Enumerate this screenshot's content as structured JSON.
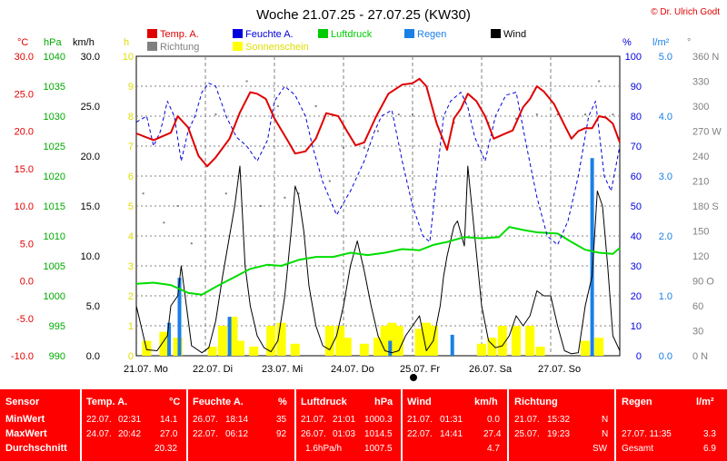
{
  "title": "Woche 21.07.25 - 27.07.25 (KW30)",
  "copyright": "© Dr. Ulrich Godt",
  "legend": [
    {
      "label": "Temp. A.",
      "color": "#e00000"
    },
    {
      "label": "Feuchte A.",
      "color": "#0000dd"
    },
    {
      "label": "Luftdruck",
      "color": "#00cc00"
    },
    {
      "label": "Regen",
      "color": "#1a7fe6"
    },
    {
      "label": "Wind",
      "color": "#000000"
    },
    {
      "label": "Richtung",
      "color": "#808080"
    },
    {
      "label": "Sonnenschein",
      "color": "#ffff00"
    }
  ],
  "axis_units": {
    "temp": "°C",
    "press": "hPa",
    "wind": "km/h",
    "sun": "h",
    "hum": "%",
    "rain": "l/m²",
    "dir": "°"
  },
  "chart_data": {
    "type": "line",
    "title": "Woche 21.07.25 - 27.07.25 (KW30)",
    "x_categories": [
      "21.07. Mo",
      "22.07. Di",
      "23.07. Mi",
      "24.07. Do",
      "25.07. Fr",
      "26.07. Sa",
      "27.07. So"
    ],
    "axes": {
      "temp_c": {
        "range": [
          -10,
          30
        ],
        "ticks": [
          "30.0",
          "25.0",
          "20.0",
          "15.0",
          "10.0",
          "5.0",
          "0.0",
          "-5.0",
          "-10.0"
        ]
      },
      "pressure_hpa": {
        "range": [
          990,
          1040
        ],
        "ticks": [
          "1040",
          "1035",
          "1030",
          "1025",
          "1020",
          "1015",
          "1010",
          "1005",
          "1000",
          "995",
          "990"
        ]
      },
      "wind_kmh": {
        "range": [
          0,
          30
        ],
        "ticks": [
          "30.0",
          "25.0",
          "20.0",
          "15.0",
          "10.0",
          "5.0",
          "0.0"
        ]
      },
      "sun_h": {
        "range": [
          0,
          10
        ],
        "ticks": [
          "10",
          "9",
          "8",
          "7",
          "6",
          "5",
          "4",
          "3",
          "2",
          "1",
          "0"
        ]
      },
      "humidity_pct": {
        "range": [
          0,
          100
        ],
        "ticks": [
          "100",
          "90",
          "80",
          "70",
          "60",
          "50",
          "40",
          "30",
          "20",
          "10",
          "0"
        ]
      },
      "rain_lm2": {
        "range": [
          0,
          5
        ],
        "ticks": [
          "5.0",
          "4.0",
          "3.0",
          "2.0",
          "1.0",
          "0.0"
        ]
      },
      "direction_deg": {
        "range": [
          0,
          360
        ],
        "ticks": [
          "360 N",
          "330",
          "300",
          "270 W",
          "240",
          "210",
          "180 S",
          "150",
          "120",
          "90 O",
          "60",
          "30",
          "0 N"
        ]
      }
    },
    "temperature": [
      [
        0,
        19.7
      ],
      [
        0.5,
        18.8
      ],
      [
        1,
        19.8
      ],
      [
        1.2,
        22.0
      ],
      [
        1.5,
        20.5
      ],
      [
        1.8,
        16.7
      ],
      [
        2.05,
        15.3
      ],
      [
        2.3,
        16.5
      ],
      [
        2.7,
        19.0
      ],
      [
        3.0,
        22.5
      ],
      [
        3.3,
        25.2
      ],
      [
        3.5,
        25.0
      ],
      [
        3.75,
        24.3
      ],
      [
        4.0,
        21.7
      ],
      [
        4.4,
        18.6
      ],
      [
        4.6,
        17.0
      ],
      [
        4.9,
        17.3
      ],
      [
        5.2,
        19.0
      ],
      [
        5.5,
        22.4
      ],
      [
        5.85,
        22.0
      ],
      [
        6.1,
        20.0
      ],
      [
        6.35,
        18.1
      ],
      [
        6.6,
        18.5
      ],
      [
        6.95,
        22.0
      ],
      [
        7.3,
        25.0
      ],
      [
        7.7,
        26.2
      ],
      [
        8.0,
        26.4
      ],
      [
        8.2,
        27.0
      ],
      [
        8.4,
        26.0
      ],
      [
        8.7,
        21.0
      ],
      [
        9.0,
        17.5
      ],
      [
        9.2,
        21.7
      ],
      [
        9.4,
        23.0
      ],
      [
        9.6,
        25.0
      ],
      [
        9.85,
        24.0
      ],
      [
        10.1,
        22.0
      ],
      [
        10.35,
        19.0
      ],
      [
        10.6,
        19.5
      ],
      [
        10.9,
        20.1
      ],
      [
        11.2,
        23.2
      ],
      [
        11.4,
        24.3
      ],
      [
        11.6,
        26.0
      ],
      [
        11.8,
        25.3
      ],
      [
        12.1,
        23.6
      ],
      [
        12.4,
        20.8
      ],
      [
        12.6,
        19.0
      ],
      [
        12.8,
        20.0
      ],
      [
        13.0,
        20.4
      ],
      [
        13.2,
        20.4
      ],
      [
        13.4,
        22.0
      ],
      [
        13.6,
        21.8
      ],
      [
        13.8,
        21.0
      ],
      [
        14.0,
        18.5
      ]
    ],
    "humidity": [
      [
        0,
        78
      ],
      [
        0.3,
        80
      ],
      [
        0.5,
        70
      ],
      [
        0.7,
        75
      ],
      [
        0.9,
        85
      ],
      [
        1.1,
        80
      ],
      [
        1.3,
        65
      ],
      [
        1.5,
        75
      ],
      [
        1.7,
        80
      ],
      [
        1.9,
        88
      ],
      [
        2.1,
        91
      ],
      [
        2.3,
        90
      ],
      [
        2.6,
        80
      ],
      [
        2.9,
        73
      ],
      [
        3.2,
        70
      ],
      [
        3.5,
        65
      ],
      [
        3.8,
        72
      ],
      [
        4.0,
        85
      ],
      [
        4.3,
        90
      ],
      [
        4.6,
        87
      ],
      [
        4.9,
        80
      ],
      [
        5.1,
        70
      ],
      [
        5.4,
        58
      ],
      [
        5.8,
        47
      ],
      [
        6.2,
        55
      ],
      [
        6.6,
        65
      ],
      [
        6.9,
        75
      ],
      [
        7.1,
        80
      ],
      [
        7.4,
        82
      ],
      [
        7.7,
        65
      ],
      [
        8.0,
        50
      ],
      [
        8.3,
        40
      ],
      [
        8.5,
        38
      ],
      [
        8.7,
        60
      ],
      [
        8.9,
        80
      ],
      [
        9.1,
        85
      ],
      [
        9.4,
        88
      ],
      [
        9.6,
        83
      ],
      [
        9.8,
        73
      ],
      [
        10.1,
        65
      ],
      [
        10.4,
        80
      ],
      [
        10.7,
        87
      ],
      [
        11.0,
        88
      ],
      [
        11.3,
        70
      ],
      [
        11.6,
        53
      ],
      [
        11.9,
        40
      ],
      [
        12.2,
        37
      ],
      [
        12.5,
        45
      ],
      [
        12.8,
        60
      ],
      [
        13.1,
        80
      ],
      [
        13.3,
        85
      ],
      [
        13.55,
        60
      ],
      [
        13.75,
        55
      ],
      [
        14.0,
        70
      ]
    ],
    "pressure": [
      [
        0,
        1002.0
      ],
      [
        0.5,
        1002.2
      ],
      [
        1.0,
        1001.8
      ],
      [
        1.5,
        1000.5
      ],
      [
        1.9,
        1000.2
      ],
      [
        2.3,
        1001.5
      ],
      [
        2.8,
        1003.0
      ],
      [
        3.3,
        1004.5
      ],
      [
        3.8,
        1005.2
      ],
      [
        4.2,
        1005.0
      ],
      [
        4.7,
        1006.0
      ],
      [
        5.2,
        1006.5
      ],
      [
        5.7,
        1006.5
      ],
      [
        6.2,
        1007.2
      ],
      [
        6.7,
        1006.8
      ],
      [
        7.2,
        1007.2
      ],
      [
        7.7,
        1007.8
      ],
      [
        8.2,
        1007.6
      ],
      [
        8.6,
        1008.5
      ],
      [
        9.0,
        1009.0
      ],
      [
        9.5,
        1009.8
      ],
      [
        10.0,
        1009.6
      ],
      [
        10.5,
        1009.8
      ],
      [
        10.8,
        1011.5
      ],
      [
        11.2,
        1011.0
      ],
      [
        11.6,
        1010.6
      ],
      [
        12.2,
        1010.4
      ],
      [
        12.6,
        1009.0
      ],
      [
        13.0,
        1007.7
      ],
      [
        13.4,
        1007.2
      ],
      [
        13.8,
        1007.0
      ],
      [
        14.0,
        1008.0
      ]
    ],
    "wind": [
      [
        0,
        5
      ],
      [
        0.3,
        0.6
      ],
      [
        0.6,
        0.5
      ],
      [
        0.9,
        2
      ],
      [
        1.0,
        5
      ],
      [
        1.2,
        6
      ],
      [
        1.3,
        9
      ],
      [
        1.45,
        5
      ],
      [
        1.6,
        1
      ],
      [
        1.9,
        0.3
      ],
      [
        2.1,
        0.8
      ],
      [
        2.3,
        3.5
      ],
      [
        2.5,
        8
      ],
      [
        2.7,
        12
      ],
      [
        2.85,
        15
      ],
      [
        3.0,
        19
      ],
      [
        3.15,
        9
      ],
      [
        3.3,
        5
      ],
      [
        3.5,
        2
      ],
      [
        3.7,
        0.8
      ],
      [
        3.9,
        0.4
      ],
      [
        4.1,
        1.5
      ],
      [
        4.3,
        6
      ],
      [
        4.5,
        13
      ],
      [
        4.6,
        17
      ],
      [
        4.7,
        16
      ],
      [
        4.85,
        12.5
      ],
      [
        5.0,
        7
      ],
      [
        5.2,
        3
      ],
      [
        5.4,
        1
      ],
      [
        5.6,
        0.6
      ],
      [
        5.8,
        2
      ],
      [
        6.0,
        5
      ],
      [
        6.2,
        9
      ],
      [
        6.4,
        11.5
      ],
      [
        6.6,
        8.5
      ],
      [
        6.8,
        5
      ],
      [
        7.0,
        2
      ],
      [
        7.2,
        0.5
      ],
      [
        7.4,
        0.3
      ],
      [
        7.6,
        0.5
      ],
      [
        7.8,
        2
      ],
      [
        8.0,
        3
      ],
      [
        8.2,
        4
      ],
      [
        8.4,
        0.5
      ],
      [
        8.6,
        1.5
      ],
      [
        8.8,
        5
      ],
      [
        8.9,
        8
      ],
      [
        9.0,
        10
      ],
      [
        9.2,
        13
      ],
      [
        9.3,
        13.5
      ],
      [
        9.5,
        11
      ],
      [
        9.6,
        19
      ],
      [
        9.8,
        12
      ],
      [
        10.0,
        5
      ],
      [
        10.2,
        1.5
      ],
      [
        10.4,
        0.8
      ],
      [
        10.6,
        1
      ],
      [
        10.8,
        2
      ],
      [
        11.0,
        4
      ],
      [
        11.2,
        3
      ],
      [
        11.4,
        4
      ],
      [
        11.6,
        6.5
      ],
      [
        11.8,
        6
      ],
      [
        12.0,
        6
      ],
      [
        12.2,
        3
      ],
      [
        12.4,
        0.5
      ],
      [
        12.6,
        0.2
      ],
      [
        12.8,
        0.3
      ],
      [
        13.0,
        5
      ],
      [
        13.2,
        8
      ],
      [
        13.35,
        16.5
      ],
      [
        13.5,
        15
      ],
      [
        13.65,
        9
      ],
      [
        13.8,
        2
      ],
      [
        14.0,
        0.5
      ]
    ],
    "rain": [
      [
        0.95,
        0.55
      ],
      [
        1.25,
        1.3
      ],
      [
        2.7,
        0.65
      ],
      [
        7.35,
        0.25
      ],
      [
        9.15,
        0.35
      ],
      [
        13.2,
        3.3
      ]
    ],
    "sunshine": [
      [
        0.3,
        0.5
      ],
      [
        0.8,
        0.8
      ],
      [
        1.2,
        0.6
      ],
      [
        2.2,
        0.3
      ],
      [
        2.5,
        1.0
      ],
      [
        2.8,
        1.3
      ],
      [
        3.0,
        0.5
      ],
      [
        3.4,
        0.3
      ],
      [
        3.9,
        1.0
      ],
      [
        4.2,
        1.1
      ],
      [
        4.6,
        0.4
      ],
      [
        5.6,
        1.0
      ],
      [
        5.9,
        1.0
      ],
      [
        6.1,
        0.6
      ],
      [
        6.6,
        0.4
      ],
      [
        7.0,
        0.6
      ],
      [
        7.2,
        1.0
      ],
      [
        7.4,
        1.1
      ],
      [
        7.6,
        1.0
      ],
      [
        8.2,
        0.9
      ],
      [
        8.4,
        1.1
      ],
      [
        8.6,
        1.0
      ],
      [
        10.0,
        0.4
      ],
      [
        10.3,
        0.6
      ],
      [
        10.6,
        1.0
      ],
      [
        11.0,
        1.0
      ],
      [
        11.4,
        1.0
      ],
      [
        11.7,
        0.3
      ],
      [
        13.0,
        0.5
      ],
      [
        13.4,
        0.6
      ]
    ],
    "direction": [
      [
        0.2,
        195
      ],
      [
        0.8,
        160
      ],
      [
        1.2,
        180
      ],
      [
        1.6,
        135
      ],
      [
        2.3,
        290
      ],
      [
        2.6,
        195
      ],
      [
        3.2,
        330
      ],
      [
        3.6,
        180
      ],
      [
        4.1,
        300
      ],
      [
        4.3,
        190
      ],
      [
        4.7,
        195
      ],
      [
        5.2,
        300
      ],
      [
        5.6,
        210
      ],
      [
        6.0,
        250
      ],
      [
        6.6,
        250
      ],
      [
        7.0,
        270
      ],
      [
        7.6,
        290
      ],
      [
        8.0,
        290
      ],
      [
        8.6,
        200
      ],
      [
        9.2,
        280
      ],
      [
        10.2,
        280
      ],
      [
        11.0,
        285
      ],
      [
        11.6,
        290
      ],
      [
        12.2,
        290
      ],
      [
        13.0,
        290
      ],
      [
        13.4,
        330
      ],
      [
        13.8,
        290
      ]
    ]
  },
  "stats": {
    "columns": [
      {
        "title": "Sensor",
        "unit": ""
      },
      {
        "title": "Temp. A.",
        "unit": "°C"
      },
      {
        "title": "Feuchte A.",
        "unit": "%"
      },
      {
        "title": "Luftdruck",
        "unit": "hPa"
      },
      {
        "title": "Wind",
        "unit": "km/h"
      },
      {
        "title": "Richtung",
        "unit": ""
      },
      {
        "title": "Regen",
        "unit": "l/m²"
      }
    ],
    "row_labels": [
      "MinWert",
      "MaxWert",
      "Durchschnitt"
    ],
    "rows": [
      [
        [
          "22.07.",
          "02:31",
          "14.1"
        ],
        [
          "26.07.",
          "18:14",
          "35"
        ],
        [
          "21.07.",
          "21:01",
          "1000.3"
        ],
        [
          "21.07.",
          "01:31",
          "0.0"
        ],
        [
          "21.07.",
          "15:32",
          "N"
        ],
        [
          "",
          ""
        ]
      ],
      [
        [
          "24.07.",
          "20:42",
          "27.0"
        ],
        [
          "22.07.",
          "06:12",
          "92"
        ],
        [
          "26.07.",
          "01:03",
          "1014.5"
        ],
        [
          "22.07.",
          "14:41",
          "27.4"
        ],
        [
          "25.07.",
          "19:23",
          "N"
        ],
        [
          "27.07. 11:35",
          "3.3"
        ]
      ],
      [
        [
          "",
          "",
          "20.32"
        ],
        [
          "",
          "",
          ""
        ],
        [
          "",
          "1.6hPa/h",
          "1007.5"
        ],
        [
          "",
          "",
          "4.7"
        ],
        [
          "",
          "",
          "SW"
        ],
        [
          "Gesamt",
          "6.9"
        ]
      ]
    ]
  }
}
